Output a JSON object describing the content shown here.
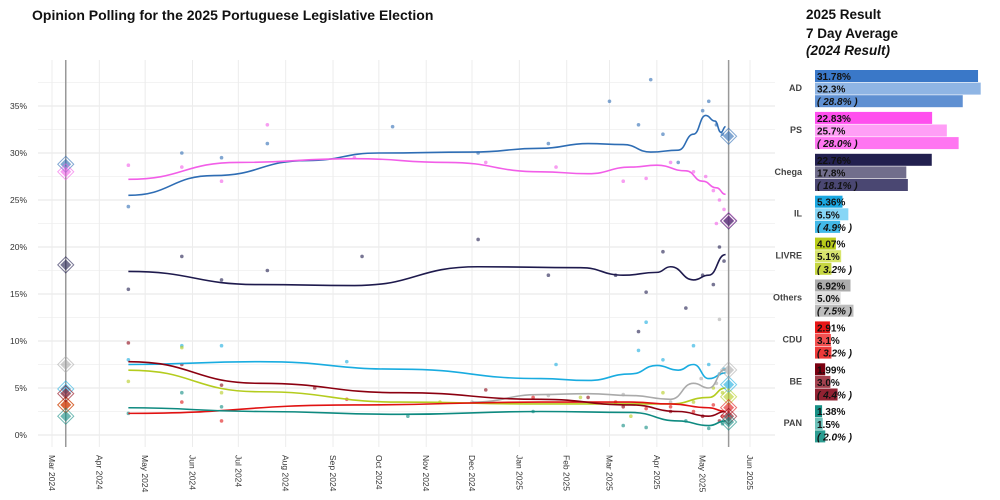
{
  "header": {
    "title": "Opinion Polling for the 2025 Portuguese Legislative Election",
    "result_title": "2025 Result",
    "avg_title": "7 Day Average",
    "prev_title": "(2024 Result)"
  },
  "chart_data": {
    "type": "scatter",
    "title": "Opinion Polling for the 2025 Portuguese Legislative Election",
    "y_ticks": [
      "0%",
      "5%",
      "10%",
      "15%",
      "20%",
      "25%",
      "30%",
      "35%"
    ],
    "ylim": [
      0,
      38
    ],
    "x_ticks": [
      "Mar 2024",
      "Apr 2024",
      "May 2024",
      "Jun 2024",
      "Jul 2024",
      "Aug 2024",
      "Sep 2024",
      "Oct 2024",
      "Nov 2024",
      "Dec 2024",
      "Jan 2025",
      "Feb 2025",
      "Mar 2025",
      "Apr 2025",
      "May 2025",
      "Jun 2025"
    ],
    "x_tick_dates": [
      "2024-03-01",
      "2024-04-01",
      "2024-05-01",
      "2024-06-01",
      "2024-07-01",
      "2024-08-01",
      "2024-09-01",
      "2024-10-01",
      "2024-11-01",
      "2024-12-01",
      "2025-01-01",
      "2025-02-01",
      "2025-03-01",
      "2025-04-01",
      "2025-05-01",
      "2025-06-01"
    ],
    "xlim": [
      "2024-02-10",
      "2025-06-18"
    ],
    "grid": true,
    "election_dates": [
      "2024-03-10",
      "2025-05-18"
    ],
    "parties": [
      {
        "name": "AD",
        "color": "#2e6db4",
        "result_2025": 31.78,
        "avg_7day": 32.3,
        "result_2024": 28.8,
        "bar_colors": [
          "#3a78c8",
          "#8fb5e4",
          "#5f90d2"
        ],
        "trend": [
          [
            "2024-04-20",
            25.5
          ],
          [
            "2024-06-15",
            27.6
          ],
          [
            "2024-08-15",
            29.2
          ],
          [
            "2024-10-01",
            30
          ],
          [
            "2024-12-01",
            30.1
          ],
          [
            "2025-01-15",
            30.5
          ],
          [
            "2025-02-15",
            31
          ],
          [
            "2025-03-10",
            30.9
          ],
          [
            "2025-03-28",
            30.1
          ],
          [
            "2025-04-15",
            30.3
          ],
          [
            "2025-04-25",
            32
          ],
          [
            "2025-05-03",
            34
          ],
          [
            "2025-05-09",
            33.4
          ],
          [
            "2025-05-13",
            32.2
          ],
          [
            "2025-05-16",
            32.8
          ]
        ],
        "polls": [
          [
            "2024-04-20",
            24.3
          ],
          [
            "2024-05-25",
            30
          ],
          [
            "2024-06-20",
            29.5
          ],
          [
            "2024-07-20",
            31
          ],
          [
            "2024-10-10",
            32.8
          ],
          [
            "2024-12-05",
            30
          ],
          [
            "2025-01-20",
            31
          ],
          [
            "2025-03-01",
            35.5
          ],
          [
            "2025-03-20",
            33
          ],
          [
            "2025-04-05",
            32
          ],
          [
            "2025-04-15",
            29
          ],
          [
            "2025-05-01",
            34.5
          ],
          [
            "2025-05-05",
            35.5
          ],
          [
            "2025-05-10",
            33
          ],
          [
            "2025-05-14",
            32
          ],
          [
            "2025-03-28",
            37.8
          ]
        ]
      },
      {
        "name": "PS",
        "color": "#f25ee8",
        "result_2025": 22.83,
        "avg_7day": 25.7,
        "result_2024": 28.0,
        "bar_colors": [
          "#ff4fee",
          "#ff9ef6",
          "#ff75f1"
        ],
        "trend": [
          [
            "2024-04-20",
            27.2
          ],
          [
            "2024-07-01",
            29
          ],
          [
            "2024-09-15",
            29.4
          ],
          [
            "2024-11-15",
            29
          ],
          [
            "2025-01-15",
            28
          ],
          [
            "2025-02-15",
            27.8
          ],
          [
            "2025-03-15",
            28.5
          ],
          [
            "2025-04-01",
            28.7
          ],
          [
            "2025-04-20",
            28.1
          ],
          [
            "2025-05-01",
            27
          ],
          [
            "2025-05-10",
            26.3
          ],
          [
            "2025-05-16",
            25.6
          ]
        ],
        "polls": [
          [
            "2024-04-20",
            28.7
          ],
          [
            "2024-05-25",
            28.5
          ],
          [
            "2024-06-20",
            27
          ],
          [
            "2024-07-20",
            33
          ],
          [
            "2024-09-15",
            29.5
          ],
          [
            "2024-12-10",
            29
          ],
          [
            "2025-01-25",
            28.5
          ],
          [
            "2025-03-10",
            27
          ],
          [
            "2025-03-25",
            27.3
          ],
          [
            "2025-04-10",
            29
          ],
          [
            "2025-04-25",
            28
          ],
          [
            "2025-05-03",
            27.5
          ],
          [
            "2025-05-08",
            26
          ],
          [
            "2025-05-12",
            25
          ],
          [
            "2025-05-15",
            24
          ],
          [
            "2025-05-10",
            22.5
          ]
        ]
      },
      {
        "name": "Chega",
        "color": "#1e1a4d",
        "result_2025": 22.76,
        "avg_7day": 17.8,
        "result_2024": 18.1,
        "bar_colors": [
          "#22204f",
          "#716e8c",
          "#4a4772"
        ],
        "trend": [
          [
            "2024-04-20",
            17.4
          ],
          [
            "2024-07-15",
            16
          ],
          [
            "2024-09-15",
            15.9
          ],
          [
            "2024-12-05",
            17.9
          ],
          [
            "2025-02-10",
            17.8
          ],
          [
            "2025-03-10",
            17
          ],
          [
            "2025-04-01",
            17.3
          ],
          [
            "2025-04-10",
            17.9
          ],
          [
            "2025-04-25",
            16.5
          ],
          [
            "2025-05-05",
            17
          ],
          [
            "2025-05-16",
            19.2
          ]
        ],
        "polls": [
          [
            "2024-04-20",
            15.5
          ],
          [
            "2024-05-25",
            19
          ],
          [
            "2024-06-20",
            16.5
          ],
          [
            "2024-07-20",
            17.5
          ],
          [
            "2024-09-20",
            19
          ],
          [
            "2024-12-05",
            20.8
          ],
          [
            "2025-01-20",
            17
          ],
          [
            "2025-03-05",
            17
          ],
          [
            "2025-03-25",
            15.2
          ],
          [
            "2025-04-05",
            19.5
          ],
          [
            "2025-04-20",
            13.5
          ],
          [
            "2025-05-01",
            17
          ],
          [
            "2025-05-08",
            16
          ],
          [
            "2025-05-12",
            20
          ],
          [
            "2025-05-15",
            18.5
          ],
          [
            "2025-03-20",
            11
          ]
        ]
      },
      {
        "name": "IL",
        "color": "#19ace0",
        "result_2025": 5.36,
        "avg_7day": 6.5,
        "result_2024": 4.9,
        "bar_colors": [
          "#1aa7e0",
          "#86d6f6",
          "#42b9e8"
        ],
        "trend": [
          [
            "2024-04-20",
            7.5
          ],
          [
            "2024-07-15",
            7.8
          ],
          [
            "2024-10-15",
            7
          ],
          [
            "2025-01-15",
            6
          ],
          [
            "2025-02-15",
            5.8
          ],
          [
            "2025-03-15",
            6.5
          ],
          [
            "2025-04-01",
            7.4
          ],
          [
            "2025-04-15",
            6.9
          ],
          [
            "2025-04-25",
            7.5
          ],
          [
            "2025-05-05",
            6
          ],
          [
            "2025-05-16",
            6.6
          ]
        ],
        "polls": [
          [
            "2024-04-20",
            8
          ],
          [
            "2024-05-25",
            9.5
          ],
          [
            "2024-06-20",
            9.5
          ],
          [
            "2024-09-10",
            7.8
          ],
          [
            "2025-01-25",
            7.5
          ],
          [
            "2025-03-20",
            9
          ],
          [
            "2025-04-05",
            8
          ],
          [
            "2025-04-25",
            9.5
          ],
          [
            "2025-05-05",
            7.5
          ],
          [
            "2025-05-12",
            6.5
          ],
          [
            "2025-05-15",
            7
          ],
          [
            "2025-03-25",
            12
          ]
        ]
      },
      {
        "name": "LIVRE",
        "color": "#b4cc1e",
        "result_2025": 4.07,
        "avg_7day": 5.1,
        "result_2024": 3.2,
        "bar_colors": [
          "#b9cc1a",
          "#d8e56e",
          "#c6d642"
        ],
        "trend": [
          [
            "2024-04-20",
            6.9
          ],
          [
            "2024-07-15",
            4.6
          ],
          [
            "2024-10-15",
            3.5
          ],
          [
            "2025-01-15",
            3.3
          ],
          [
            "2025-03-15",
            3.3
          ],
          [
            "2025-04-10",
            3.3
          ],
          [
            "2025-05-05",
            4
          ],
          [
            "2025-05-16",
            5
          ]
        ],
        "polls": [
          [
            "2024-04-20",
            5.7
          ],
          [
            "2024-05-25",
            9.3
          ],
          [
            "2024-06-20",
            4.5
          ],
          [
            "2024-11-10",
            3.5
          ],
          [
            "2025-02-10",
            4
          ],
          [
            "2025-03-15",
            2
          ],
          [
            "2025-04-05",
            4.5
          ],
          [
            "2025-04-25",
            3.5
          ],
          [
            "2025-05-08",
            5
          ],
          [
            "2025-05-14",
            4.5
          ]
        ]
      },
      {
        "name": "Others",
        "color": "#aaaaaa",
        "result_2025": 6.92,
        "avg_7day": 5.0,
        "result_2024": 7.5,
        "bar_colors": [
          "#acacac",
          "#dcdcdc",
          "#bdbdbd"
        ],
        "trend": [
          [
            "2024-12-01",
            3.5
          ],
          [
            "2025-01-15",
            4.3
          ],
          [
            "2025-02-15",
            4.4
          ],
          [
            "2025-03-15",
            4.2
          ],
          [
            "2025-04-10",
            3.8
          ],
          [
            "2025-04-25",
            5.5
          ],
          [
            "2025-05-05",
            5
          ],
          [
            "2025-05-16",
            7
          ]
        ],
        "polls": [
          [
            "2024-12-01",
            3.5
          ],
          [
            "2025-01-20",
            4.2
          ],
          [
            "2025-03-10",
            4.3
          ],
          [
            "2025-04-10",
            3.5
          ],
          [
            "2025-04-30",
            6
          ],
          [
            "2025-05-10",
            5.5
          ],
          [
            "2025-05-12",
            12.3
          ]
        ]
      },
      {
        "name": "CDU",
        "color": "#e01212",
        "result_2025": 2.91,
        "avg_7day": 3.1,
        "result_2024": 3.2,
        "bar_colors": [
          "#e81818",
          "#f25050",
          "#ee3a3a"
        ],
        "trend": [
          [
            "2024-04-20",
            2.3
          ],
          [
            "2024-09-15",
            3.2
          ],
          [
            "2025-01-15",
            3.5
          ],
          [
            "2025-03-15",
            3.5
          ],
          [
            "2025-04-10",
            3.3
          ],
          [
            "2025-05-05",
            2.9
          ],
          [
            "2025-05-16",
            2.5
          ]
        ],
        "polls": [
          [
            "2024-05-25",
            3.5
          ],
          [
            "2024-06-20",
            1.5
          ],
          [
            "2024-09-10",
            3.8
          ],
          [
            "2025-01-10",
            4
          ],
          [
            "2025-03-05",
            3.5
          ],
          [
            "2025-03-25",
            2.8
          ],
          [
            "2025-04-10",
            3
          ],
          [
            "2025-04-25",
            2.5
          ],
          [
            "2025-05-08",
            3.2
          ],
          [
            "2025-05-14",
            2
          ]
        ]
      },
      {
        "name": "BE",
        "color": "#8b0010",
        "result_2025": 1.99,
        "avg_7day": 3.0,
        "result_2024": 4.4,
        "bar_colors": [
          "#7a0010",
          "#a4424f",
          "#922232"
        ],
        "trend": [
          [
            "2024-04-20",
            7.8
          ],
          [
            "2024-07-15",
            5.5
          ],
          [
            "2024-10-15",
            4.5
          ],
          [
            "2025-01-15",
            3.8
          ],
          [
            "2025-03-15",
            3.2
          ],
          [
            "2025-04-15",
            2.5
          ],
          [
            "2025-05-05",
            2
          ],
          [
            "2025-05-16",
            2.5
          ]
        ],
        "polls": [
          [
            "2024-04-20",
            9.8
          ],
          [
            "2024-05-25",
            7.5
          ],
          [
            "2024-06-20",
            5.3
          ],
          [
            "2024-08-20",
            5
          ],
          [
            "2024-12-10",
            4.8
          ],
          [
            "2025-02-15",
            4
          ],
          [
            "2025-03-10",
            3
          ],
          [
            "2025-04-10",
            2.5
          ],
          [
            "2025-05-01",
            2
          ],
          [
            "2025-05-12",
            1.5
          ]
        ]
      },
      {
        "name": "PAN",
        "color": "#0e8a80",
        "result_2025": 1.38,
        "avg_7day": 1.5,
        "result_2024": 2.0,
        "bar_colors": [
          "#168f85",
          "#6cc1b9",
          "#2c9c91"
        ],
        "trend": [
          [
            "2024-04-20",
            2.9
          ],
          [
            "2024-07-15",
            2.5
          ],
          [
            "2024-10-15",
            2.2
          ],
          [
            "2025-01-15",
            2.5
          ],
          [
            "2025-03-15",
            2.4
          ],
          [
            "2025-04-15",
            1.5
          ],
          [
            "2025-05-05",
            1
          ],
          [
            "2025-05-16",
            1.5
          ]
        ],
        "polls": [
          [
            "2024-04-20",
            2.3
          ],
          [
            "2024-05-25",
            4.5
          ],
          [
            "2024-06-20",
            3
          ],
          [
            "2024-10-20",
            2
          ],
          [
            "2025-01-10",
            2.5
          ],
          [
            "2025-03-10",
            1
          ],
          [
            "2025-03-25",
            0.8
          ],
          [
            "2025-04-20",
            1.5
          ],
          [
            "2025-05-05",
            0.7
          ],
          [
            "2025-05-14",
            1.2
          ]
        ]
      }
    ]
  }
}
